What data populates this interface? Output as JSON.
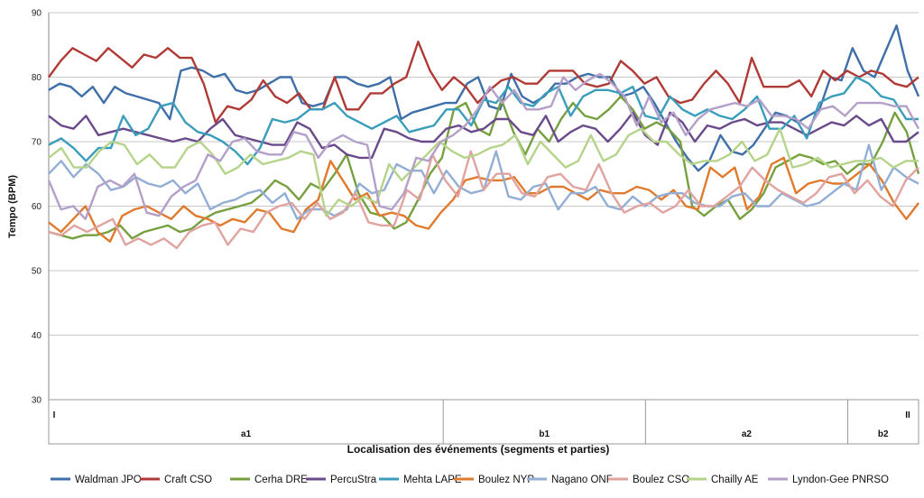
{
  "chart_data": {
    "type": "line",
    "ylabel": "Tempo (BPM)",
    "xlabel": "Localisation des événements (segments et parties)",
    "ylim": [
      30,
      90
    ],
    "yticks": [
      30,
      40,
      50,
      60,
      70,
      80,
      90
    ],
    "grid": "horizontal",
    "legend_position": "bottom",
    "segment_labels": [
      {
        "label": "a1",
        "start": 0,
        "end": 39
      },
      {
        "label": "b1",
        "start": 39,
        "end": 59
      },
      {
        "label": "a2",
        "start": 59,
        "end": 79
      },
      {
        "label": "b2",
        "start": 79,
        "end": 86
      }
    ],
    "part_labels": [
      {
        "label": "I",
        "at": 0
      },
      {
        "label": "II",
        "at": 86
      }
    ],
    "n_points": 87,
    "series": [
      {
        "name": "Waldman JPO",
        "color": "#3f6fa8",
        "values": [
          78,
          79,
          78.5,
          77,
          78.5,
          76,
          78.5,
          77.5,
          77,
          76.5,
          76,
          73.5,
          81,
          81.5,
          81,
          80,
          80.5,
          78,
          77.5,
          78,
          79,
          80,
          80,
          76,
          75.5,
          76,
          80,
          80,
          79,
          78.5,
          79,
          80,
          73.5,
          74.5,
          75,
          75.5,
          76,
          76,
          79,
          80,
          75.5,
          75,
          80.5,
          77,
          76,
          77,
          79,
          79,
          80,
          80.5,
          80,
          80,
          77,
          77.5,
          78.5,
          76,
          73,
          70,
          67.5,
          65.5,
          67,
          71,
          68.5,
          68,
          69.5,
          72,
          74.5,
          74,
          73,
          74,
          75,
          80,
          79.5,
          84.5,
          81,
          80,
          84,
          88,
          81,
          77
        ]
      },
      {
        "name": "Craft CSO",
        "color": "#b03a35",
        "values": [
          80,
          82.5,
          84.5,
          83.5,
          82.5,
          84.5,
          83,
          81.5,
          83.5,
          83,
          84.5,
          83,
          83,
          79,
          73,
          75.5,
          75,
          76.5,
          79.5,
          77,
          76,
          77.5,
          75,
          75,
          80,
          75,
          75,
          77.5,
          77.5,
          79,
          80,
          85.5,
          81,
          78,
          80,
          78.5,
          76,
          78,
          79.5,
          80,
          79,
          79,
          81,
          81,
          81,
          79,
          78.5,
          79,
          82.5,
          81,
          79,
          80,
          77,
          76,
          76.5,
          79,
          81,
          79,
          76,
          83,
          78.5,
          78.5,
          78.5,
          79.5,
          77,
          81,
          79.5,
          81,
          80,
          81,
          80.5,
          79,
          78.5,
          80
        ]
      },
      {
        "name": "Cerha DRE",
        "color": "#76a03f",
        "values": [
          56,
          55.5,
          55,
          55.5,
          55.5,
          56,
          57,
          55,
          56,
          56.5,
          57,
          56,
          56.5,
          58,
          59,
          59.5,
          60,
          60.5,
          62,
          64,
          63,
          61,
          63.5,
          62.5,
          65,
          68,
          62,
          59,
          58.5,
          56.5,
          57.5,
          61,
          65,
          67.5,
          75,
          76,
          72,
          71,
          76.5,
          71.5,
          68,
          72,
          70,
          73.5,
          76,
          74,
          73.5,
          75,
          77,
          75,
          72,
          73,
          72,
          70,
          60,
          58.5,
          60,
          61,
          58,
          59.5,
          62,
          66,
          67,
          68,
          67.5,
          66.5,
          67,
          65,
          66.5,
          66.5,
          70,
          74.5,
          71.5,
          65
        ]
      },
      {
        "name": "PercuStra",
        "color": "#6a4a8a",
        "values": [
          74,
          72.5,
          72,
          74,
          71,
          71.5,
          72,
          71.5,
          71,
          70.5,
          70,
          70.5,
          70,
          72,
          73.5,
          71,
          70.5,
          70,
          69.5,
          69.5,
          73,
          72,
          69,
          69.5,
          68,
          67.5,
          67.5,
          72,
          71.5,
          70.5,
          70,
          70,
          72,
          72.5,
          71.5,
          72,
          73.5,
          73.5,
          71.5,
          71,
          74,
          70,
          71.5,
          72.5,
          72,
          70,
          72,
          74.5,
          71,
          69.5,
          74.5,
          73,
          70,
          72.5,
          72,
          73,
          73.5,
          72.5,
          73,
          73,
          72,
          71,
          72,
          73,
          72.5,
          74,
          72.5,
          73.5,
          70,
          70,
          71.5
        ]
      },
      {
        "name": "Mehta LAPE",
        "color": "#3a9dbb",
        "values": [
          69.5,
          70.5,
          69,
          67,
          69,
          69,
          74,
          71,
          72,
          75.5,
          76,
          73,
          71.5,
          71,
          70,
          68.5,
          66.5,
          69,
          73.5,
          73,
          73.5,
          75,
          75,
          76,
          74,
          73,
          72,
          73,
          74,
          71.5,
          72,
          72.5,
          75,
          75,
          72.5,
          76.5,
          76,
          78.5,
          76,
          75.5,
          77.5,
          78.5,
          74,
          77,
          78,
          78,
          77.5,
          78.5,
          74,
          73.5,
          77,
          75,
          74,
          75,
          74,
          73.5,
          75,
          77,
          72,
          72,
          74,
          70.5,
          76,
          77,
          77.5,
          80,
          79,
          77,
          76.5,
          73.5,
          73.5
        ]
      },
      {
        "name": "Boulez NYP",
        "color": "#e07a2e",
        "values": [
          57.5,
          56,
          58,
          60,
          56,
          54.5,
          58.5,
          59.5,
          60,
          59,
          58,
          60,
          58.5,
          58,
          57,
          58,
          57.5,
          59.5,
          59,
          56.5,
          56,
          59.5,
          61,
          67,
          64,
          61,
          62,
          58.5,
          59,
          58.5,
          57,
          56.5,
          59,
          61,
          64,
          64.5,
          64,
          64,
          64.5,
          62,
          62,
          63,
          63,
          62,
          61,
          62.5,
          62,
          62,
          63,
          62.5,
          61,
          62.5,
          60,
          59.5,
          66,
          64.5,
          66,
          59.5,
          61.5,
          66.5,
          67.5,
          62,
          63.5,
          64,
          63.5,
          63.5,
          65,
          66.5,
          64,
          60.5,
          58,
          60.5
        ]
      },
      {
        "name": "Nagano ONF",
        "color": "#93aed4",
        "values": [
          65,
          67,
          64.5,
          66.5,
          65,
          62.5,
          63,
          64.5,
          63.5,
          63,
          64,
          62,
          63.5,
          59.5,
          60.5,
          61,
          62,
          62.5,
          60.5,
          62,
          58,
          59.5,
          59.5,
          58.5,
          59.5,
          63.5,
          62,
          62.5,
          66.5,
          65.5,
          65.5,
          62,
          65.5,
          63,
          62,
          62.5,
          68.5,
          61.5,
          61,
          63,
          63.5,
          59.5,
          62,
          62,
          63,
          60,
          59.5,
          61.5,
          60,
          61.5,
          62,
          62,
          60.5,
          60,
          60,
          61.5,
          62,
          60,
          60,
          62,
          61,
          60,
          60.5,
          62,
          63.5,
          62.5,
          69.5,
          62.5,
          66,
          64.5,
          63.5
        ]
      },
      {
        "name": "Boulez CSO",
        "color": "#e0a3a0",
        "values": [
          56,
          55.5,
          57,
          56,
          57,
          58,
          54,
          55,
          54,
          55,
          53.5,
          56,
          57,
          57.5,
          54,
          56.5,
          56,
          59,
          60,
          60.5,
          58,
          60.5,
          58,
          59,
          62,
          57.5,
          57,
          57,
          62.5,
          61,
          68,
          64,
          61.5,
          68.5,
          62.5,
          65,
          65,
          62,
          61.5,
          64.5,
          65,
          63,
          62.5,
          66.5,
          62,
          59,
          60,
          60.5,
          59,
          60,
          62.5,
          60,
          60,
          61.5,
          63,
          66,
          64,
          62.5,
          61.5,
          60.5,
          62,
          64.5,
          65,
          62,
          64,
          61.5,
          60,
          64,
          66
        ]
      },
      {
        "name": "Chailly AE",
        "color": "#b5d48a",
        "values": [
          67.5,
          69,
          66,
          66,
          68.5,
          70,
          69.5,
          66.5,
          68,
          66,
          66,
          69,
          70,
          68,
          65,
          66,
          68,
          66.5,
          67,
          67.5,
          68.5,
          68,
          58.5,
          61,
          60,
          61.5,
          60.5,
          66.5,
          64,
          66,
          68,
          70,
          68.5,
          67.5,
          68,
          69,
          69.5,
          71,
          66.5,
          70,
          68,
          66,
          67,
          71,
          67,
          68,
          71,
          72,
          70,
          70,
          68,
          66.5,
          67,
          67,
          68,
          70,
          67,
          68,
          72,
          66,
          66.5,
          67.5,
          66,
          66.5,
          67,
          67,
          67.5,
          66,
          67,
          67
        ]
      },
      {
        "name": "Lyndon-Gee PNRSO",
        "color": "#b49fc9",
        "values": [
          64,
          59.5,
          60,
          58,
          63,
          64,
          63,
          65,
          59,
          58.5,
          61.5,
          63,
          64,
          68,
          67,
          70,
          70.5,
          68.5,
          68,
          68,
          71.5,
          71,
          67.5,
          70,
          71,
          70,
          69.5,
          60,
          59.5,
          62,
          67.5,
          67,
          70,
          71,
          72.5,
          75,
          78.5,
          76,
          78,
          75,
          75,
          75.5,
          80,
          78,
          79.5,
          80.5,
          79,
          77,
          72.5,
          77,
          73,
          74.5,
          71,
          73.5,
          75,
          75.5,
          76,
          75.5,
          76.5,
          74,
          74,
          73.5,
          72,
          75,
          75.5,
          74,
          76,
          76,
          76,
          75.5,
          75.5,
          72
        ]
      }
    ]
  }
}
